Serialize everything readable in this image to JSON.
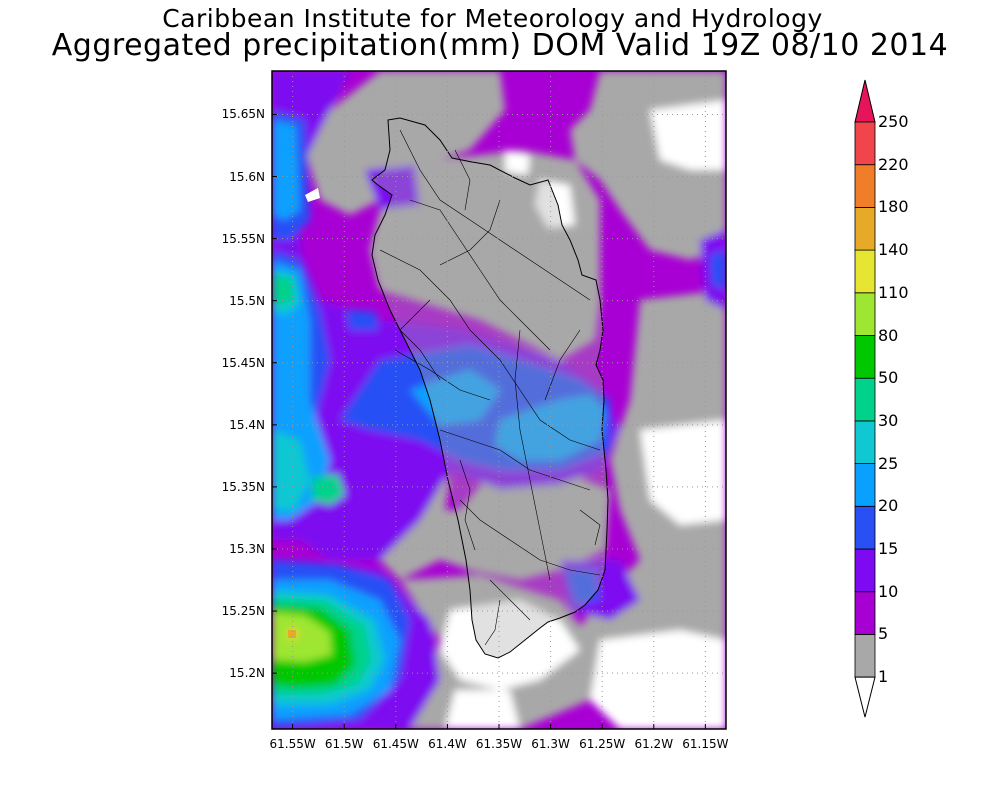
{
  "header": {
    "title": "Caribbean Institute for Meteorology and Hydrology",
    "subtitle": "Aggregated precipitation(mm) DOM Valid 19Z 08/10 2014"
  },
  "map": {
    "region": "Dominica",
    "lat_ticks": [
      "15.65N",
      "15.6N",
      "15.55N",
      "15.5N",
      "15.45N",
      "15.4N",
      "15.35N",
      "15.3N",
      "15.25N",
      "15.2N"
    ],
    "lon_ticks": [
      "61.55W",
      "61.5W",
      "61.45W",
      "61.4W",
      "61.35W",
      "61.3W",
      "61.25W",
      "61.2W",
      "61.15W"
    ],
    "lon_range": [
      -61.57,
      -61.13
    ],
    "lat_range": [
      15.155,
      15.685
    ],
    "grid": true,
    "gridline_style": "dotted"
  },
  "colorbar": {
    "levels": [
      "1",
      "5",
      "10",
      "15",
      "20",
      "25",
      "30",
      "50",
      "80",
      "110",
      "140",
      "180",
      "220",
      "250"
    ],
    "colors": [
      "#a8a8a8",
      "#a600d2",
      "#7d0af0",
      "#2850f5",
      "#0aa0ff",
      "#10c8d2",
      "#00d28c",
      "#00c800",
      "#9ee632",
      "#e6e632",
      "#e6aa28",
      "#f07d28",
      "#f0464b",
      "#e6145a"
    ],
    "below_color": "#ffffff",
    "above_color": "#e6145a",
    "placement": "right"
  }
}
